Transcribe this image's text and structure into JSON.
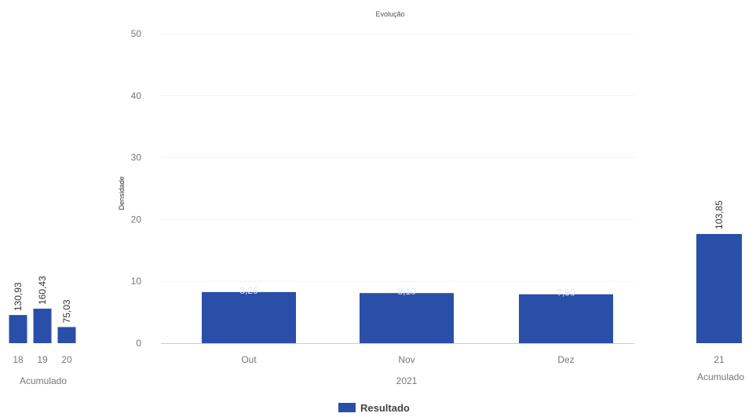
{
  "chart_data": [
    {
      "type": "bar",
      "xlabel": "Acumulado",
      "categories": [
        "18",
        "19",
        "20"
      ],
      "series": [
        {
          "name": "Resultado",
          "values": [
            130.93,
            160.43,
            75.03
          ]
        }
      ],
      "value_labels": [
        "130,93",
        "160,43",
        "75,03"
      ]
    },
    {
      "type": "bar",
      "title": "Evolução",
      "ylabel": "Densidade",
      "xlabel": "2021",
      "categories": [
        "Out",
        "Nov",
        "Dez"
      ],
      "series": [
        {
          "name": "Resultado",
          "values": [
            8.26,
            8.1,
            7.9
          ]
        }
      ],
      "value_labels": [
        "8,26",
        "8,10",
        "7,90"
      ],
      "ylim": [
        0,
        50
      ],
      "yticks": [
        "0",
        "10",
        "20",
        "30",
        "40",
        "50"
      ],
      "grid": true
    },
    {
      "type": "bar",
      "xlabel": "Acumulado",
      "categories": [
        "21"
      ],
      "series": [
        {
          "name": "Resultado",
          "values": [
            103.85
          ]
        }
      ],
      "value_labels": [
        "103,85"
      ]
    }
  ],
  "legend": {
    "label": "Resultado",
    "position": "bottom-center"
  },
  "colors": {
    "bar": "#2a4fa8",
    "grid": "#f1f1f1",
    "axis": "#cccccc"
  }
}
